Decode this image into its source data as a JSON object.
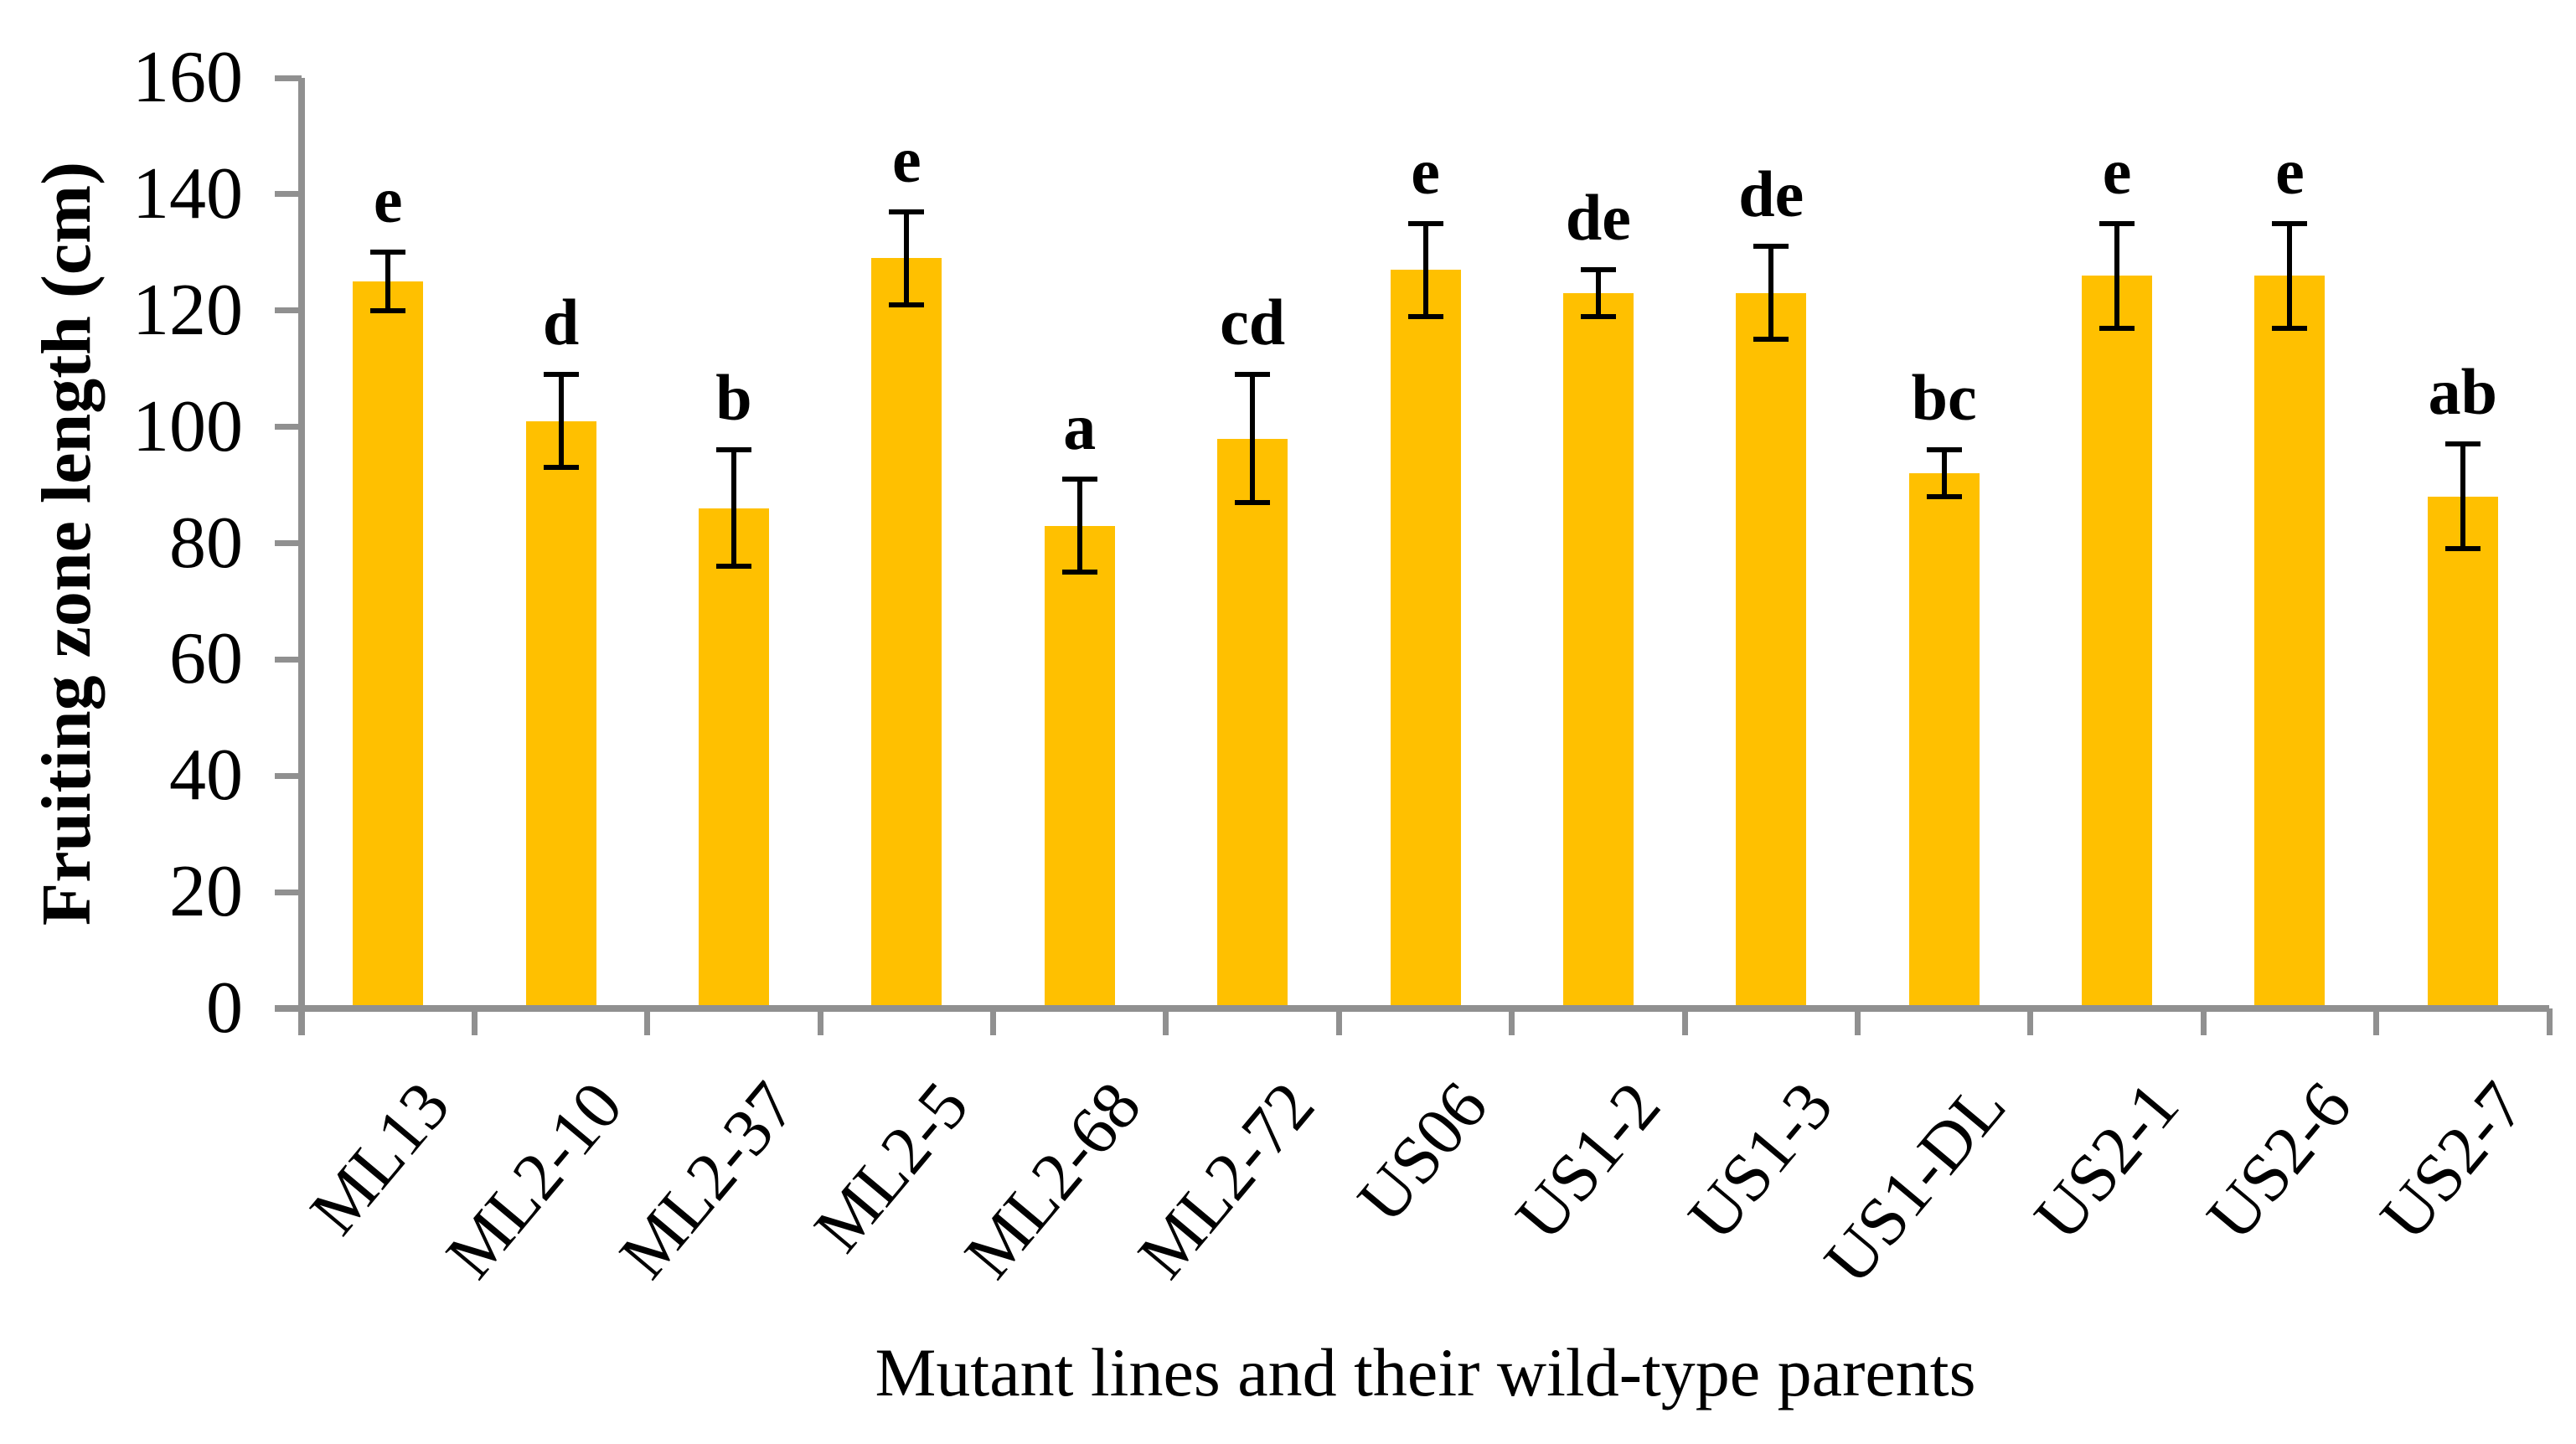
{
  "chart_data": {
    "type": "bar",
    "title": "",
    "xlabel": "Mutant lines and their wild-type parents",
    "ylabel": "Fruiting zone length (cm)",
    "ylim": [
      0,
      160
    ],
    "ytick_step": 20,
    "ytick_labels": [
      "0",
      "20",
      "40",
      "60",
      "80",
      "100",
      "120",
      "140",
      "160"
    ],
    "grid": false,
    "legend": null,
    "bar_color": "#FFC000",
    "axis_color": "#909090",
    "error_bar_color": "#000000",
    "categories": [
      "ML13",
      "ML2-10",
      "ML2-37",
      "ML2-5",
      "ML2-68",
      "ML2-72",
      "US06",
      "US1-2",
      "US1-3",
      "US1-DL",
      "US2-1",
      "US2-6",
      "US2-7"
    ],
    "values": [
      125,
      101,
      86,
      129,
      83,
      98,
      127,
      123,
      123,
      92,
      126,
      126,
      88
    ],
    "errors": [
      5,
      8,
      10,
      8,
      8,
      11,
      8,
      4,
      8,
      4,
      9,
      9,
      9
    ],
    "sig_letters": [
      "e",
      "d",
      "b",
      "e",
      "a",
      "cd",
      "e",
      "de",
      "de",
      "bc",
      "e",
      "e",
      "ab"
    ]
  }
}
